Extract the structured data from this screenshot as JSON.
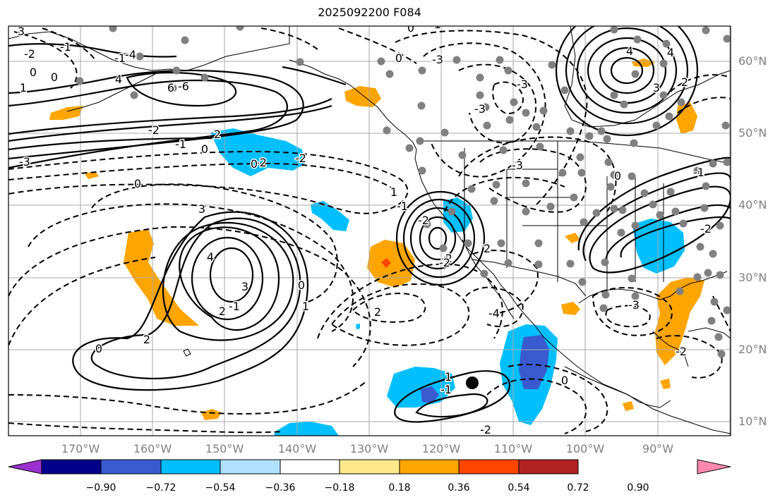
{
  "title": "2025092200 F084",
  "lat_labels": [
    "60°N",
    "50°N",
    "40°N",
    "30°N",
    "20°N",
    "10°N"
  ],
  "lon_labels": [
    "170°W",
    "160°W",
    "150°W",
    "140°W",
    "130°W",
    "120°W",
    "110°W",
    "100°W",
    "90°W"
  ],
  "colorbar": {
    "tick_labels": [
      "−0.90",
      "−0.72",
      "−0.54",
      "−0.36",
      "−0.18",
      "0.18",
      "0.36",
      "0.54",
      "0.72",
      "0.90"
    ],
    "colors": [
      "#9b30d0",
      "#00008b",
      "#3a5bcf",
      "#00bfff",
      "#b0e2ff",
      "#ffffff",
      "#fde98a",
      "#ffa500",
      "#ff4500",
      "#b22222",
      "#ff88b0"
    ]
  },
  "contour_labels": [
    "3",
    "-2",
    "-1",
    "0",
    "1",
    "-1",
    "0",
    "-4",
    "4",
    "-6",
    "6",
    "-3",
    "-2",
    "-1",
    "0",
    "-3",
    "3",
    "0",
    "-2",
    "2",
    "-2",
    "2",
    "0",
    "0",
    "2",
    "-4",
    "-3",
    "-3",
    "-3",
    "4",
    "3",
    "2",
    "1",
    "0",
    "-1",
    "-2",
    "-1",
    "-2",
    "2",
    "-2",
    "1",
    "-3",
    "4",
    "4",
    "3",
    "2",
    "1",
    "0",
    "0",
    "1",
    "-2",
    "0",
    "-1",
    "-2",
    "0",
    "-1",
    "-2"
  ],
  "markers": {
    "storm_center": "black-dot",
    "stations": "gray-dots"
  }
}
